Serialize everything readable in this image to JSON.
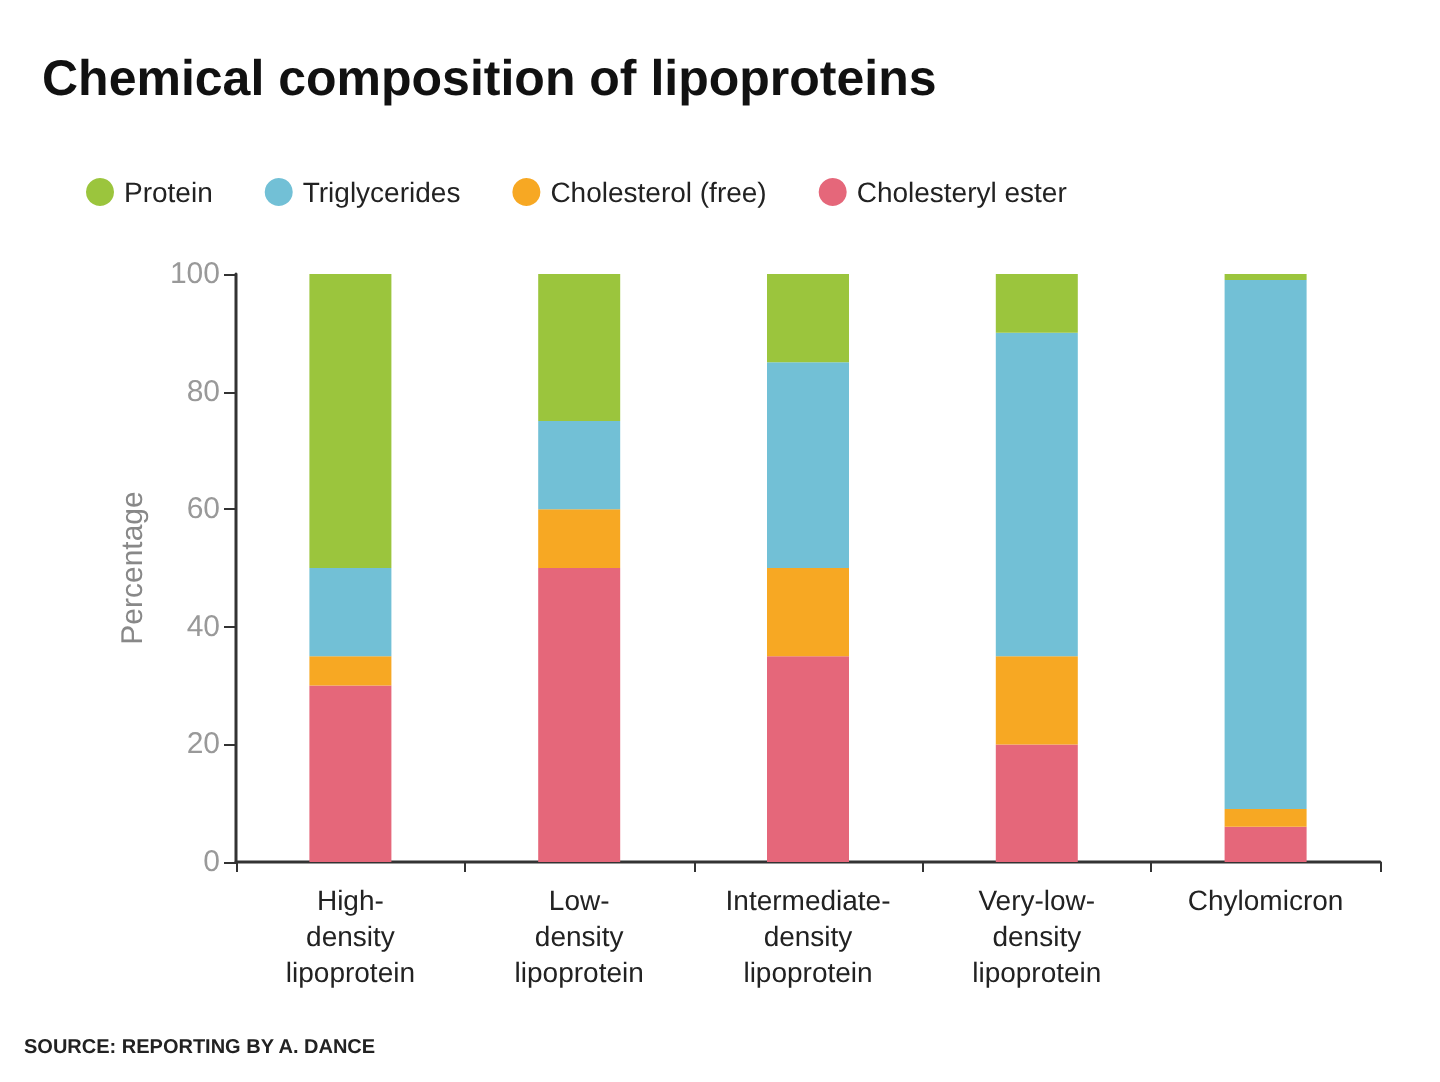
{
  "chart_data": {
    "type": "bar",
    "stacked": true,
    "title": "Chemical composition of lipoproteins",
    "ylabel": "Percentage",
    "categories": [
      "High-\ndensity\nlipoprotein",
      "Low-\ndensity\nlipoprotein",
      "Intermediate-\ndensity\nlipoprotein",
      "Very-low-\ndensity\nlipoprotein",
      "Chylomicron"
    ],
    "series": [
      {
        "name": "Cholesteryl ester",
        "color": "#e5677a",
        "values": [
          30,
          50,
          35,
          20,
          6
        ]
      },
      {
        "name": "Cholesterol (free)",
        "color": "#f7a823",
        "values": [
          5,
          10,
          15,
          15,
          3
        ]
      },
      {
        "name": "Triglycerides",
        "color": "#72c0d6",
        "values": [
          15,
          15,
          35,
          55,
          90
        ]
      },
      {
        "name": "Protein",
        "color": "#9bc53d",
        "values": [
          50,
          25,
          15,
          10,
          1
        ]
      }
    ],
    "ylim": [
      0,
      100
    ],
    "yticks": [
      0,
      20,
      40,
      60,
      80,
      100
    ],
    "grid": false,
    "legend": "top left",
    "annotations": [
      "SOURCE: REPORTING BY A. DANCE"
    ]
  }
}
